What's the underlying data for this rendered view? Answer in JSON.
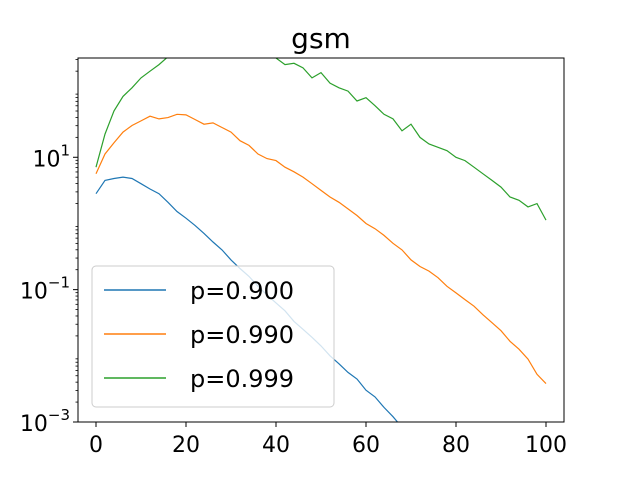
{
  "chart_data": {
    "type": "line",
    "title": "gsm",
    "xlabel": "",
    "ylabel": "",
    "xlim": [
      -4,
      104
    ],
    "ylim_log10": [
      -3,
      2.5
    ],
    "yscale": "log",
    "grid": false,
    "legend_position": "lower-left",
    "x_ticks": [
      0,
      20,
      40,
      60,
      80,
      100
    ],
    "x_tick_labels": [
      "0",
      "20",
      "40",
      "60",
      "80",
      "100"
    ],
    "y_ticks_log10": [
      -3,
      -1,
      1
    ],
    "y_tick_labels": [
      {
        "base": "10",
        "exp": "−3"
      },
      {
        "base": "10",
        "exp": "−1"
      },
      {
        "base": "10",
        "exp": "1"
      }
    ],
    "series": [
      {
        "name": "p=0.900",
        "color": "#1f77b4",
        "x": [
          0,
          2,
          4,
          6,
          8,
          10,
          12,
          14,
          16,
          18,
          20,
          22,
          24,
          26,
          28,
          30,
          32,
          34,
          36,
          38,
          40,
          42,
          44,
          46,
          48,
          50,
          52,
          54,
          56,
          58,
          60,
          62,
          64,
          66,
          67
        ],
        "log10y": [
          0.45,
          0.65,
          0.68,
          0.7,
          0.68,
          0.6,
          0.52,
          0.45,
          0.32,
          0.18,
          0.08,
          -0.03,
          -0.15,
          -0.28,
          -0.4,
          -0.55,
          -0.68,
          -0.8,
          -0.95,
          -1.08,
          -1.2,
          -1.32,
          -1.48,
          -1.6,
          -1.72,
          -1.85,
          -2.0,
          -2.12,
          -2.25,
          -2.35,
          -2.52,
          -2.62,
          -2.78,
          -2.92,
          -3.0
        ]
      },
      {
        "name": "p=0.990",
        "color": "#ff7f0e",
        "x": [
          0,
          2,
          4,
          6,
          8,
          10,
          12,
          14,
          16,
          18,
          20,
          22,
          24,
          26,
          28,
          30,
          32,
          34,
          36,
          38,
          40,
          42,
          44,
          46,
          48,
          50,
          52,
          54,
          56,
          58,
          60,
          62,
          64,
          66,
          68,
          70,
          72,
          74,
          76,
          78,
          80,
          82,
          84,
          86,
          88,
          90,
          92,
          94,
          96,
          98,
          100
        ],
        "log10y": [
          0.75,
          1.05,
          1.22,
          1.38,
          1.48,
          1.55,
          1.62,
          1.58,
          1.6,
          1.65,
          1.64,
          1.57,
          1.5,
          1.52,
          1.45,
          1.38,
          1.25,
          1.18,
          1.05,
          0.98,
          0.95,
          0.85,
          0.78,
          0.7,
          0.6,
          0.5,
          0.4,
          0.32,
          0.22,
          0.12,
          0.0,
          -0.08,
          -0.18,
          -0.3,
          -0.4,
          -0.55,
          -0.65,
          -0.72,
          -0.82,
          -0.95,
          -1.05,
          -1.15,
          -1.25,
          -1.38,
          -1.5,
          -1.62,
          -1.78,
          -1.9,
          -2.05,
          -2.28,
          -2.42
        ]
      },
      {
        "name": "p=0.999",
        "color": "#2ca02c",
        "x": [
          0,
          2,
          4,
          6,
          8,
          10,
          12,
          14,
          16,
          18,
          20,
          22,
          24,
          26,
          28,
          30,
          32,
          34,
          36,
          38,
          40,
          42,
          44,
          46,
          48,
          50,
          52,
          54,
          56,
          58,
          60,
          62,
          64,
          66,
          68,
          70,
          72,
          74,
          76,
          78,
          80,
          82,
          84,
          86,
          88,
          90,
          92,
          94,
          96,
          98,
          100
        ],
        "log10y": [
          0.85,
          1.35,
          1.7,
          1.92,
          2.05,
          2.2,
          2.3,
          2.4,
          2.52,
          2.62,
          2.65,
          2.7,
          2.68,
          2.65,
          2.72,
          2.7,
          2.62,
          2.6,
          2.55,
          2.58,
          2.5,
          2.4,
          2.42,
          2.35,
          2.2,
          2.28,
          2.12,
          2.05,
          2.0,
          1.85,
          1.9,
          1.78,
          1.65,
          1.58,
          1.4,
          1.5,
          1.3,
          1.2,
          1.15,
          1.1,
          1.0,
          0.95,
          0.85,
          0.75,
          0.65,
          0.55,
          0.4,
          0.35,
          0.25,
          0.3,
          0.05
        ]
      }
    ]
  }
}
